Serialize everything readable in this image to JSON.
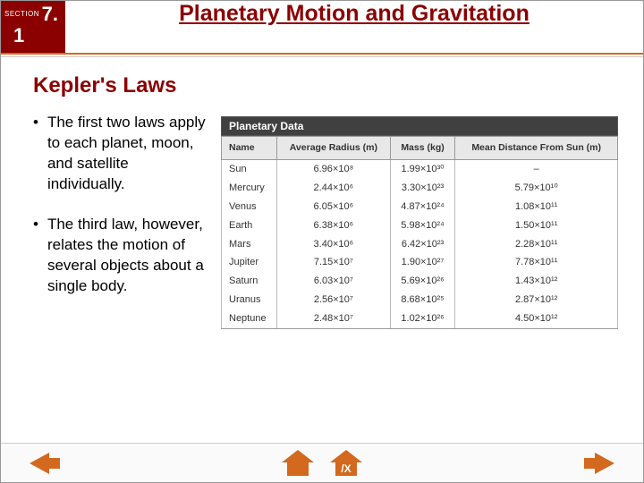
{
  "header": {
    "section_label": "SECTION",
    "section_number_top": "7.",
    "section_number_bottom": "1",
    "title": "Planetary Motion and Gravitation"
  },
  "subtitle": "Kepler's Laws",
  "bullets": [
    "The first two laws apply to each planet, moon, and satellite individually.",
    "The third law, however, relates the motion of several objects about a single body."
  ],
  "table": {
    "caption": "Planetary Data",
    "columns": [
      "Name",
      "Average Radius (m)",
      "Mass (kg)",
      "Mean Distance From Sun (m)"
    ],
    "rows": [
      [
        "Sun",
        "6.96×10⁸",
        "1.99×10³⁰",
        "–"
      ],
      [
        "Mercury",
        "2.44×10⁶",
        "3.30×10²³",
        "5.79×10¹⁰"
      ],
      [
        "Venus",
        "6.05×10⁶",
        "4.87×10²⁴",
        "1.08×10¹¹"
      ],
      [
        "Earth",
        "6.38×10⁶",
        "5.98×10²⁴",
        "1.50×10¹¹"
      ],
      [
        "Mars",
        "3.40×10⁶",
        "6.42×10²³",
        "2.28×10¹¹"
      ],
      [
        "Jupiter",
        "7.15×10⁷",
        "1.90×10²⁷",
        "7.78×10¹¹"
      ],
      [
        "Saturn",
        "6.03×10⁷",
        "5.69×10²⁶",
        "1.43×10¹²"
      ],
      [
        "Uranus",
        "2.56×10⁷",
        "8.68×10²⁵",
        "2.87×10¹²"
      ],
      [
        "Neptune",
        "2.48×10⁷",
        "1.02×10²⁶",
        "4.50×10¹²"
      ]
    ],
    "header_bg": "#e8e8e8",
    "caption_bg": "#404040",
    "border_color": "#999999"
  },
  "colors": {
    "brand_red": "#8b0000",
    "accent_orange": "#d2691e",
    "background": "#ffffff"
  },
  "footer": {
    "xhome_label": "/X"
  }
}
